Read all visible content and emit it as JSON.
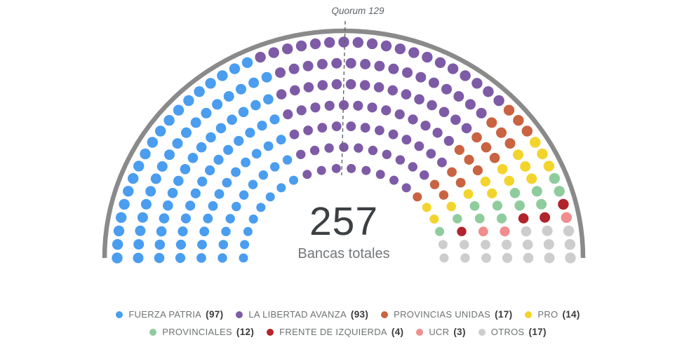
{
  "chart_data": {
    "type": "parliament",
    "shape": "semicircle",
    "rows": 7,
    "legend_position": "bottom",
    "total": 257,
    "total_label": "Bancas totales",
    "quorum": {
      "label": "Quorum 129",
      "value": 129
    },
    "parties": [
      {
        "name": "FUERZA PATRIA",
        "seats": 97,
        "color": "#4a9def"
      },
      {
        "name": "LA LIBERTAD AVANZA",
        "seats": 93,
        "color": "#7e5ba6"
      },
      {
        "name": "PROVINCIAS UNIDAS",
        "seats": 17,
        "color": "#c96342"
      },
      {
        "name": "PRO",
        "seats": 14,
        "color": "#f3d42c"
      },
      {
        "name": "PROVINCIALES",
        "seats": 12,
        "color": "#8fcc9d"
      },
      {
        "name": "FRENTE DE IZQUIERDA",
        "seats": 4,
        "color": "#b2242c"
      },
      {
        "name": "UCR",
        "seats": 3,
        "color": "#ef8e8d"
      },
      {
        "name": "OTROS",
        "seats": 17,
        "color": "#cdcdcd"
      }
    ],
    "legend_rows": [
      [
        0,
        1,
        2,
        3
      ],
      [
        4,
        5,
        6,
        7
      ]
    ],
    "colors": {
      "outer_arc": "#8a8a8a",
      "quorum_line": "#5f6368"
    }
  }
}
